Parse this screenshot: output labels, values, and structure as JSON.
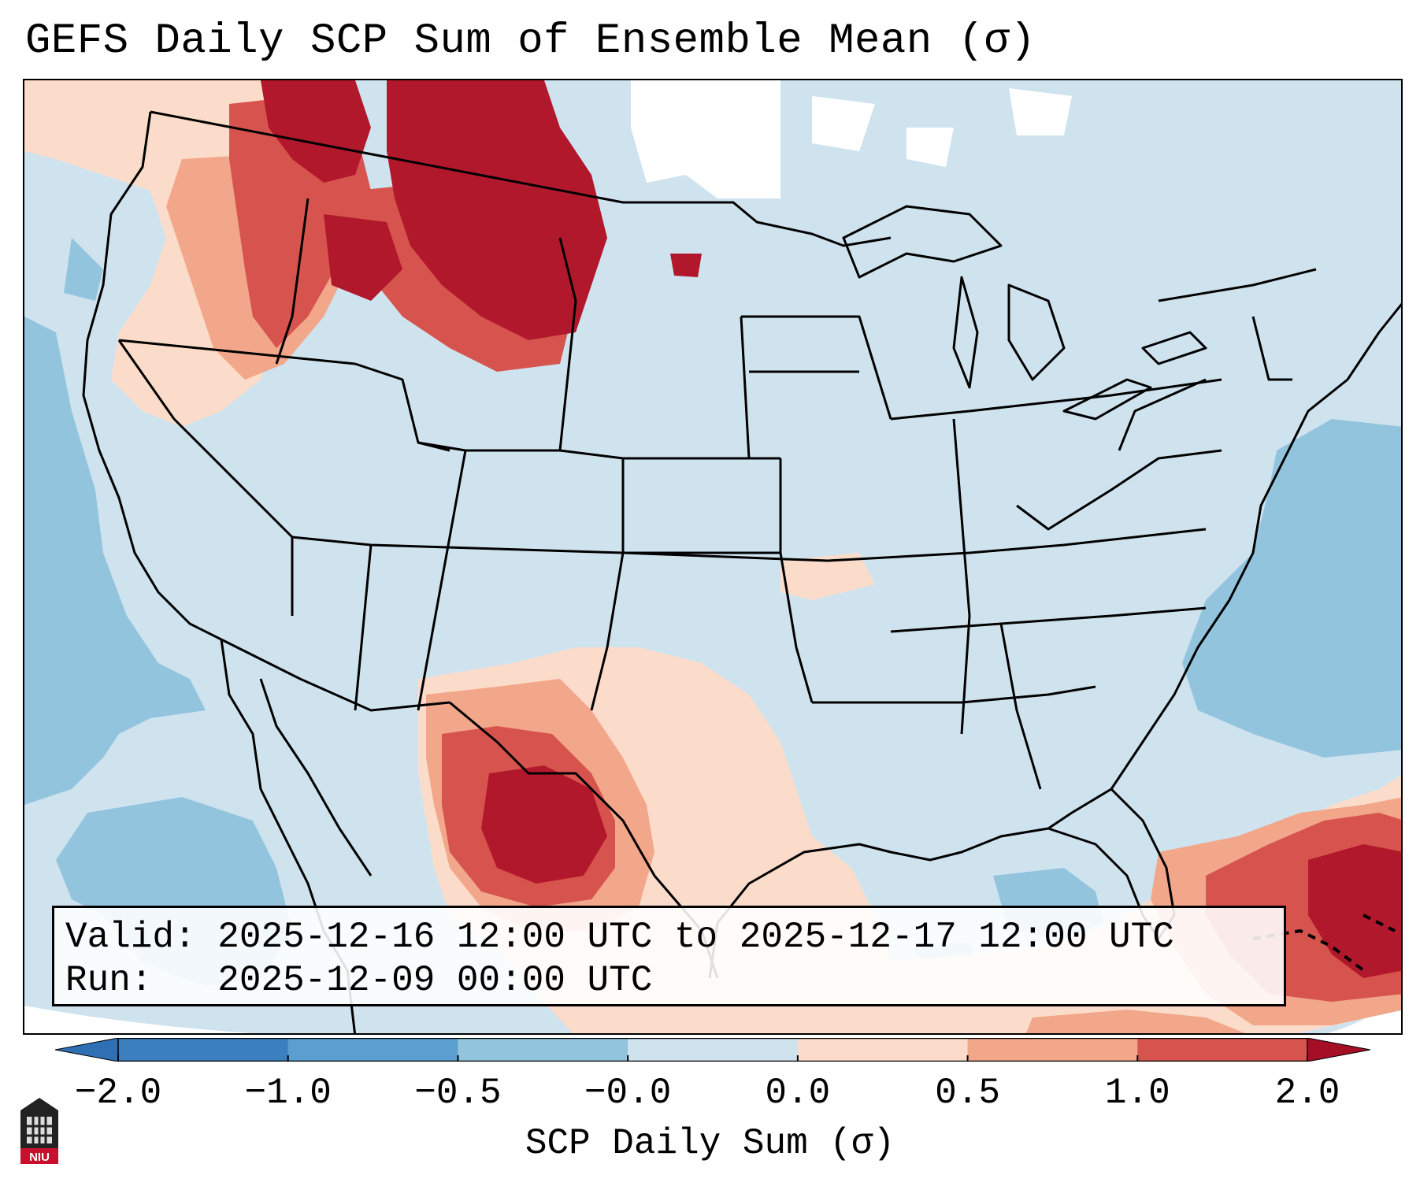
{
  "title": "GEFS Daily SCP Sum of Ensemble Mean (σ)",
  "info": {
    "valid_label": "Valid:",
    "valid_value": "2025-12-16 12:00 UTC to 2025-12-17 12:00 UTC",
    "run_label": "Run:",
    "run_value": "2025-12-09 00:00 UTC"
  },
  "colorbar": {
    "label": "SCP Daily Sum (σ)",
    "ticks": [
      "−2.0",
      "−1.0",
      "−0.5",
      "−0.0",
      "0.0",
      "0.5",
      "1.0",
      "2.0"
    ],
    "colors": [
      "#3b7fbf",
      "#5a9fd0",
      "#93c4de",
      "#cfe3ef",
      "#fbdcca",
      "#f2a68a",
      "#d6544d",
      "#b2182b"
    ],
    "under_color": "#2f6fb4",
    "over_color": "#a50f25"
  },
  "logo": {
    "text": "NIU"
  }
}
